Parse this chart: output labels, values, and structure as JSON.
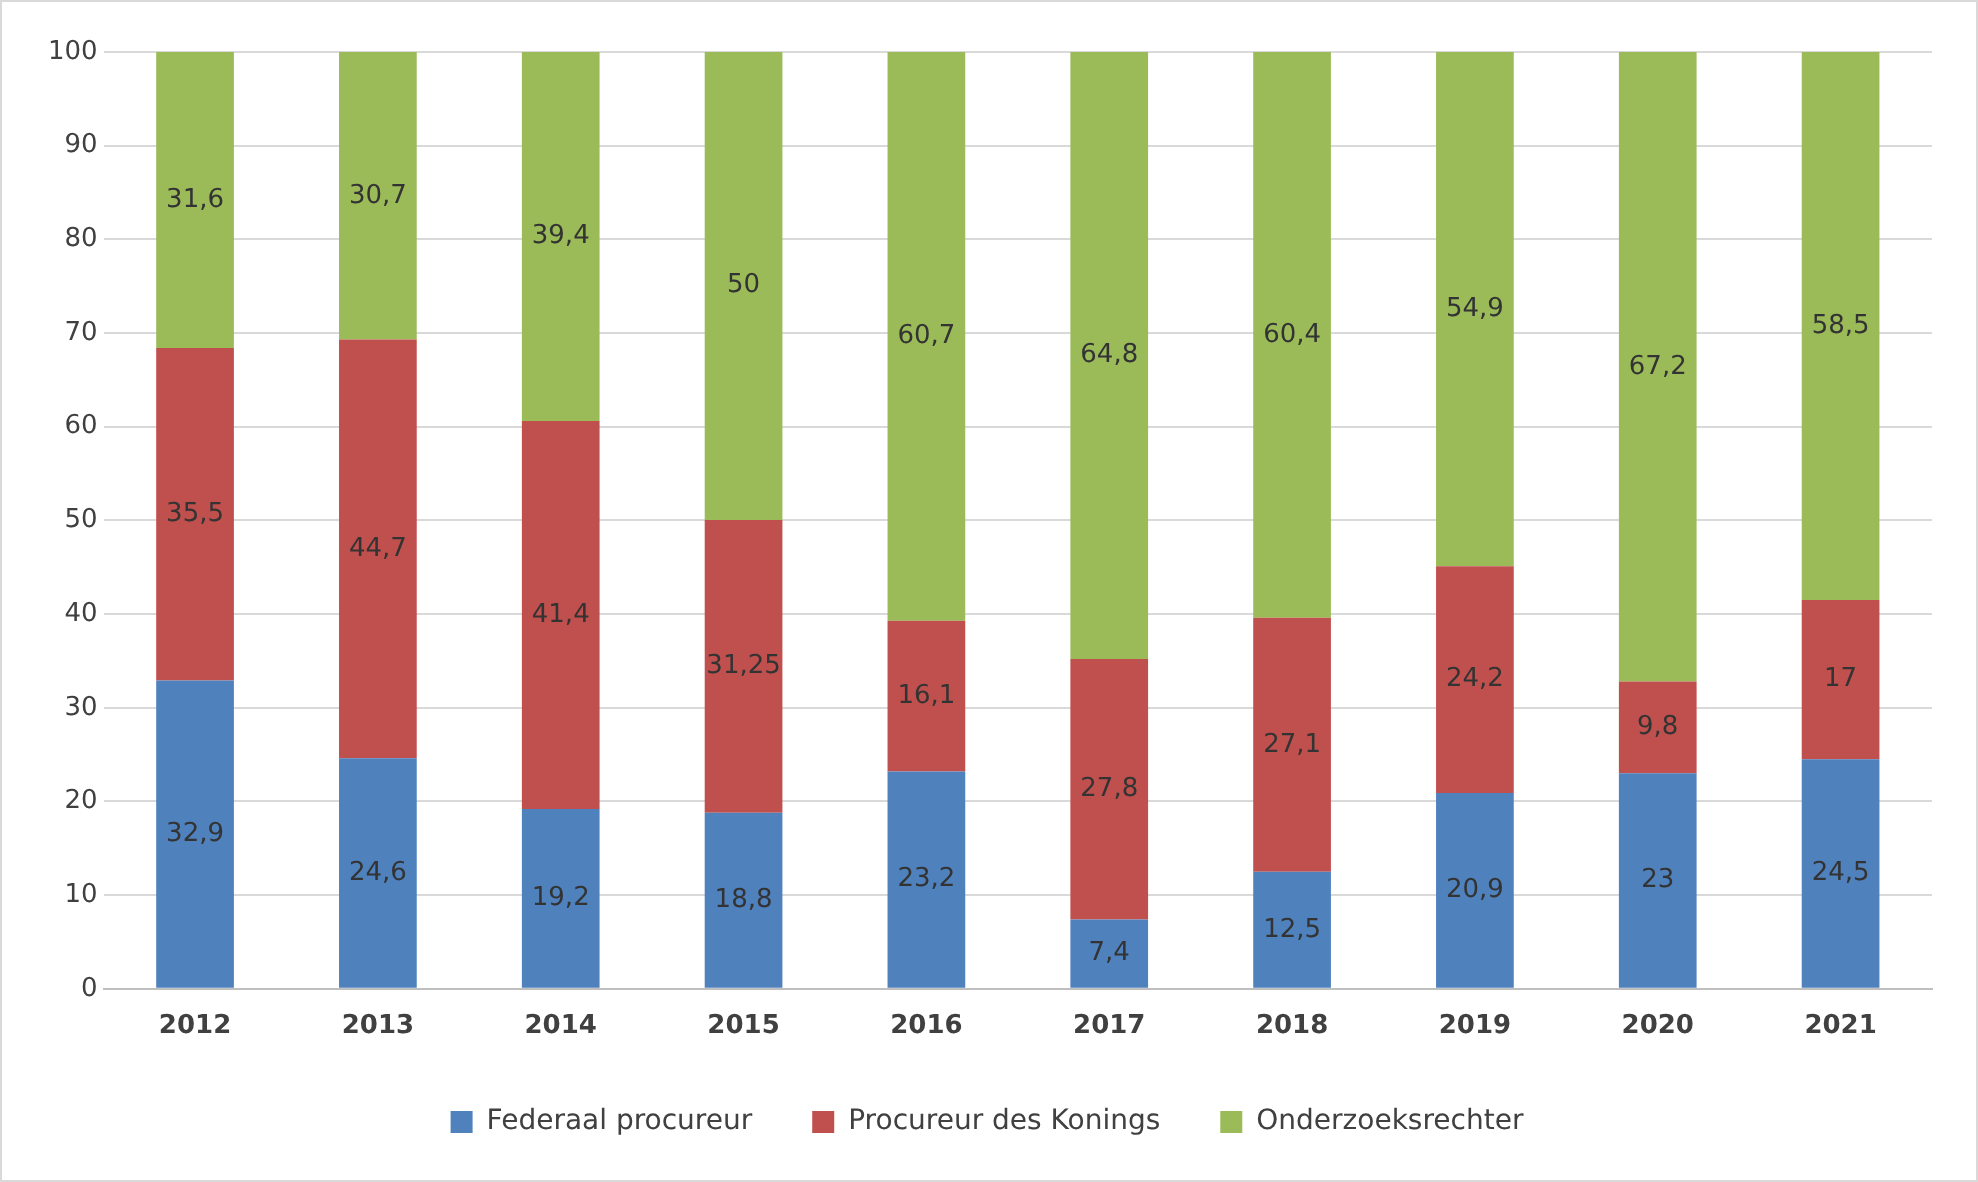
{
  "chart_data": {
    "type": "bar",
    "stacked": true,
    "categories": [
      "2012",
      "2013",
      "2014",
      "2015",
      "2016",
      "2017",
      "2018",
      "2019",
      "2020",
      "2021"
    ],
    "series": [
      {
        "name": "Federaal procureur",
        "color": "#4f81bd",
        "values": [
          32.9,
          24.6,
          19.2,
          18.8,
          23.2,
          7.4,
          12.5,
          20.9,
          23,
          24.5
        ],
        "value_labels": [
          "32,9",
          "24,6",
          "19,2",
          "18,8",
          "23,2",
          "7,4",
          "12,5",
          "20,9",
          "23",
          "24,5"
        ]
      },
      {
        "name": "Procureur des Konings",
        "color": "#c0504d",
        "values": [
          35.5,
          44.7,
          41.4,
          31.25,
          16.1,
          27.8,
          27.1,
          24.2,
          9.8,
          17
        ],
        "value_labels": [
          "35,5",
          "44,7",
          "41,4",
          "31,25",
          "16,1",
          "27,8",
          "27,1",
          "24,2",
          "9,8",
          "17"
        ]
      },
      {
        "name": "Onderzoeksrechter",
        "color": "#9bbb59",
        "values": [
          31.6,
          30.7,
          39.4,
          50,
          60.7,
          64.8,
          60.4,
          54.9,
          67.2,
          58.5
        ],
        "value_labels": [
          "31,6",
          "30,7",
          "39,4",
          "50",
          "60,7",
          "64,8",
          "60,4",
          "54,9",
          "67,2",
          "58,5"
        ]
      }
    ],
    "ylim": [
      0,
      100
    ],
    "yticks": [
      0,
      10,
      20,
      30,
      40,
      50,
      60,
      70,
      80,
      90,
      100
    ],
    "grid": "y",
    "legend": "bottom"
  }
}
